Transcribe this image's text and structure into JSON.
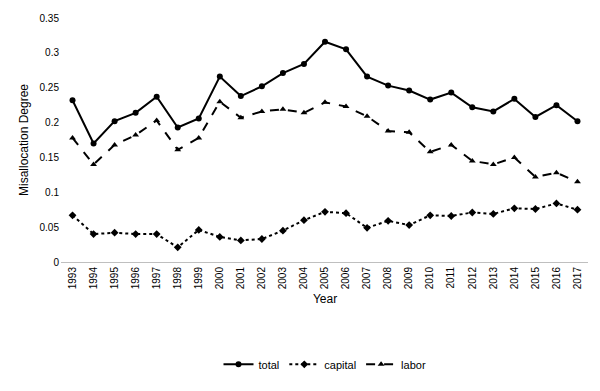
{
  "chart_data": {
    "type": "line",
    "x_label": "Year",
    "y_label": "Misallocation Degree",
    "categories": [
      "1993",
      "1994",
      "1995",
      "1996",
      "1997",
      "1998",
      "1999",
      "2000",
      "2001",
      "2002",
      "2003",
      "2004",
      "2005",
      "2006",
      "2007",
      "2008",
      "2009",
      "2010",
      "2011",
      "2012",
      "2013",
      "2014",
      "2015",
      "2016",
      "2017"
    ],
    "series": [
      {
        "name": "total",
        "color": "#000000",
        "marker": "circle",
        "line_style": "solid",
        "values": [
          0.232,
          0.17,
          0.202,
          0.214,
          0.237,
          0.193,
          0.206,
          0.266,
          0.238,
          0.252,
          0.271,
          0.284,
          0.316,
          0.305,
          0.266,
          0.253,
          0.246,
          0.233,
          0.243,
          0.222,
          0.216,
          0.234,
          0.208,
          0.225,
          0.202
        ]
      },
      {
        "name": "capital",
        "color": "#000000",
        "marker": "diamond",
        "line_style": "dot",
        "values": [
          0.067,
          0.04,
          0.042,
          0.04,
          0.04,
          0.021,
          0.046,
          0.036,
          0.031,
          0.033,
          0.045,
          0.06,
          0.072,
          0.07,
          0.049,
          0.059,
          0.053,
          0.067,
          0.066,
          0.071,
          0.069,
          0.077,
          0.076,
          0.084,
          0.075
        ]
      },
      {
        "name": "labor",
        "color": "#000000",
        "marker": "triangle-up",
        "line_style": "dash",
        "values": [
          0.178,
          0.14,
          0.168,
          0.182,
          0.203,
          0.161,
          0.178,
          0.23,
          0.207,
          0.216,
          0.219,
          0.214,
          0.229,
          0.223,
          0.209,
          0.188,
          0.186,
          0.158,
          0.168,
          0.145,
          0.14,
          0.15,
          0.122,
          0.128,
          0.115
        ]
      }
    ],
    "ylim": [
      0,
      0.35
    ],
    "yticks": [
      0,
      0.05,
      0.1,
      0.15,
      0.2,
      0.25,
      0.3,
      0.35
    ],
    "grid": false,
    "legend": "bottom"
  }
}
